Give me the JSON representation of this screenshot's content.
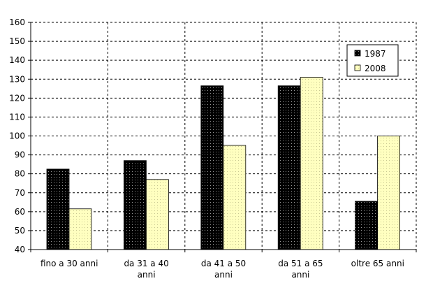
{
  "chart_data": {
    "type": "bar",
    "categories": [
      [
        "fino a 30 anni"
      ],
      [
        "da 31 a 40",
        "anni"
      ],
      [
        "da 41 a 50",
        "anni"
      ],
      [
        "da 51 a 65",
        "anni"
      ],
      [
        "oltre 65 anni"
      ]
    ],
    "series": [
      {
        "name": "1987",
        "values": [
          82.5,
          87,
          126.5,
          126.5,
          65.5
        ],
        "color": "#000000",
        "pattern": "dotted-dark"
      },
      {
        "name": "2008",
        "values": [
          61.5,
          77,
          95,
          131,
          100
        ],
        "color": "#ffffc0",
        "pattern": "dotted-light"
      }
    ],
    "ylim": [
      40,
      160
    ],
    "yticks": [
      "40",
      "50",
      "60",
      "70",
      "80",
      "90",
      "100",
      "110",
      "120",
      "130",
      "140",
      "150",
      "160"
    ],
    "grid": true,
    "legend_position": "top-right",
    "title": "",
    "xlabel": "",
    "ylabel": ""
  }
}
